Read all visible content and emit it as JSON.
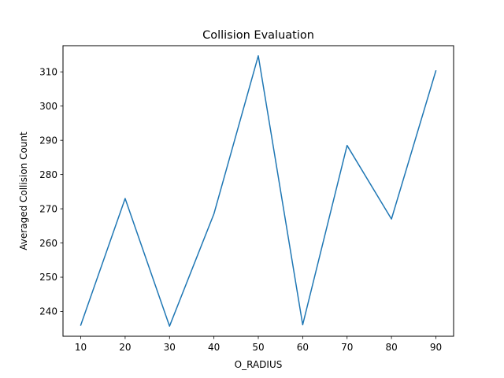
{
  "chart_data": {
    "type": "line",
    "title": "Collision Evaluation",
    "xlabel": "O_RADIUS",
    "ylabel": "Averaged Collision Count",
    "x": [
      10,
      20,
      30,
      40,
      50,
      60,
      70,
      80,
      90
    ],
    "series": [
      {
        "values": [
          236.0,
          273.0,
          235.7,
          268.5,
          314.7,
          236.1,
          288.5,
          267.0,
          310.3
        ],
        "color": "#1f77b4"
      }
    ],
    "xlim": [
      6,
      94
    ],
    "ylim": [
      232.75,
      317.65
    ],
    "xticks": [
      "10",
      "20",
      "30",
      "40",
      "50",
      "60",
      "70",
      "80",
      "90"
    ],
    "yticks": [
      "240",
      "250",
      "260",
      "270",
      "280",
      "290",
      "300",
      "310"
    ],
    "grid": false
  }
}
